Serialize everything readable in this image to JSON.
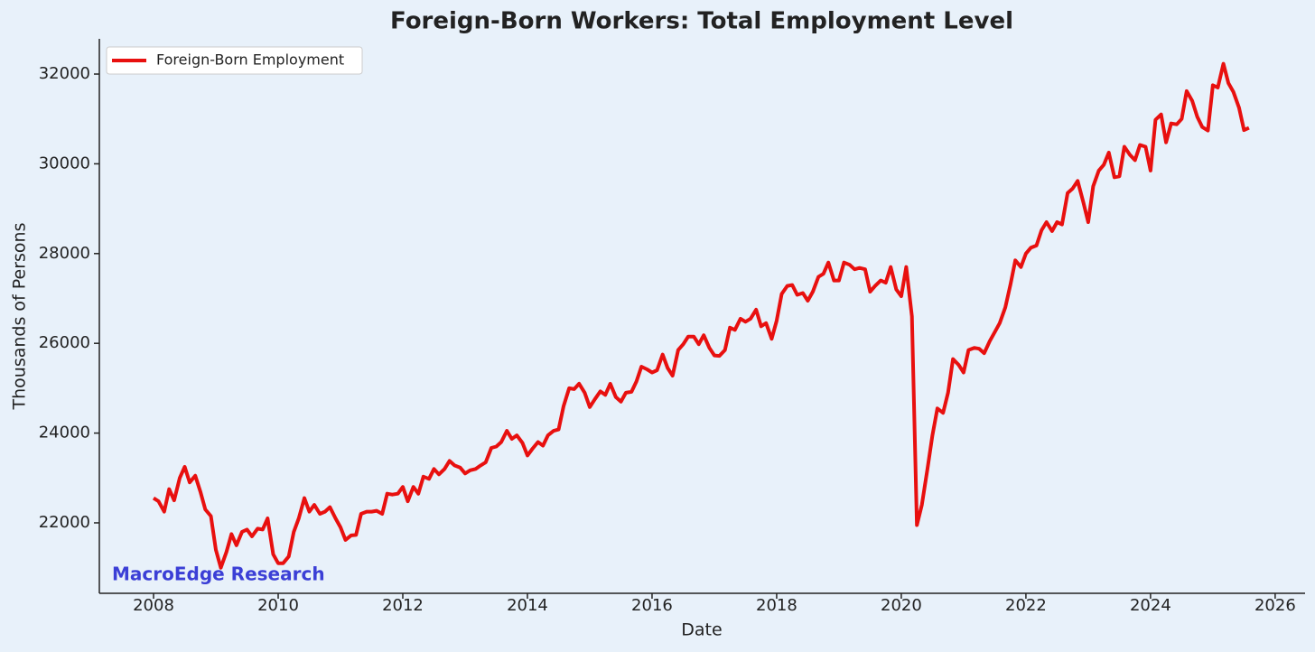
{
  "chart_data": {
    "type": "line",
    "title": "Foreign-Born Workers: Total Employment Level",
    "x_label": "Date",
    "y_label": "Thousands of Persons",
    "annotation": "MacroEdge Research",
    "legend": "upper left",
    "grid": false,
    "xlim": [
      2007.13,
      2026.48
    ],
    "xticks": [
      2008,
      2010,
      2012,
      2014,
      2016,
      2018,
      2020,
      2022,
      2024,
      2026
    ],
    "ylim": [
      20430,
      32785
    ],
    "yticks": [
      22000,
      24000,
      26000,
      28000,
      30000,
      32000
    ],
    "x": [
      2008,
      2008.08,
      2008.17,
      2008.25,
      2008.33,
      2008.42,
      2008.5,
      2008.58,
      2008.67,
      2008.75,
      2008.83,
      2008.92,
      2009,
      2009.08,
      2009.17,
      2009.25,
      2009.33,
      2009.42,
      2009.5,
      2009.58,
      2009.67,
      2009.75,
      2009.83,
      2009.92,
      2010,
      2010.08,
      2010.17,
      2010.25,
      2010.33,
      2010.42,
      2010.5,
      2010.58,
      2010.67,
      2010.75,
      2010.83,
      2010.92,
      2011,
      2011.08,
      2011.17,
      2011.25,
      2011.33,
      2011.42,
      2011.5,
      2011.58,
      2011.67,
      2011.75,
      2011.83,
      2011.92,
      2012,
      2012.08,
      2012.17,
      2012.25,
      2012.33,
      2012.42,
      2012.5,
      2012.58,
      2012.67,
      2012.75,
      2012.83,
      2012.92,
      2013,
      2013.08,
      2013.17,
      2013.25,
      2013.33,
      2013.42,
      2013.5,
      2013.58,
      2013.67,
      2013.75,
      2013.83,
      2013.92,
      2014,
      2014.08,
      2014.17,
      2014.25,
      2014.33,
      2014.42,
      2014.5,
      2014.58,
      2014.67,
      2014.75,
      2014.83,
      2014.92,
      2015,
      2015.08,
      2015.17,
      2015.25,
      2015.33,
      2015.42,
      2015.5,
      2015.58,
      2015.67,
      2015.75,
      2015.83,
      2015.92,
      2016,
      2016.08,
      2016.17,
      2016.25,
      2016.33,
      2016.42,
      2016.5,
      2016.58,
      2016.67,
      2016.75,
      2016.83,
      2016.92,
      2017,
      2017.08,
      2017.17,
      2017.25,
      2017.33,
      2017.42,
      2017.5,
      2017.58,
      2017.67,
      2017.75,
      2017.83,
      2017.92,
      2018,
      2018.08,
      2018.17,
      2018.25,
      2018.33,
      2018.42,
      2018.5,
      2018.58,
      2018.67,
      2018.75,
      2018.83,
      2018.92,
      2019,
      2019.08,
      2019.17,
      2019.25,
      2019.33,
      2019.42,
      2019.5,
      2019.58,
      2019.67,
      2019.75,
      2019.83,
      2019.92,
      2020,
      2020.08,
      2020.17,
      2020.25,
      2020.33,
      2020.42,
      2020.5,
      2020.58,
      2020.67,
      2020.75,
      2020.83,
      2020.92,
      2021,
      2021.08,
      2021.17,
      2021.25,
      2021.33,
      2021.42,
      2021.5,
      2021.58,
      2021.67,
      2021.75,
      2021.83,
      2021.92,
      2022,
      2022.08,
      2022.17,
      2022.25,
      2022.33,
      2022.42,
      2022.5,
      2022.58,
      2022.67,
      2022.75,
      2022.83,
      2022.92,
      2023,
      2023.08,
      2023.17,
      2023.25,
      2023.33,
      2023.42,
      2023.5,
      2023.58,
      2023.67,
      2023.75,
      2023.83,
      2023.92,
      2024,
      2024.08,
      2024.17,
      2024.25,
      2024.33,
      2024.42,
      2024.5,
      2024.58,
      2024.67,
      2024.75,
      2024.83,
      2024.92,
      2025,
      2025.08,
      2025.17,
      2025.25,
      2025.33,
      2025.42,
      2025.5,
      2025.58
    ],
    "series": [
      {
        "name": "Foreign-Born Employment",
        "color": "#e8100f",
        "values": [
          22550,
          22480,
          22250,
          22750,
          22500,
          23000,
          23250,
          22900,
          23050,
          22700,
          22300,
          22150,
          21400,
          21000,
          21350,
          21750,
          21500,
          21800,
          21850,
          21700,
          21870,
          21850,
          22100,
          21300,
          21100,
          21100,
          21250,
          21800,
          22100,
          22550,
          22250,
          22400,
          22200,
          22250,
          22350,
          22100,
          21900,
          21620,
          21720,
          21730,
          22200,
          22250,
          22250,
          22270,
          22200,
          22650,
          22630,
          22650,
          22800,
          22480,
          22800,
          22650,
          23030,
          22980,
          23200,
          23080,
          23200,
          23380,
          23280,
          23230,
          23100,
          23170,
          23200,
          23280,
          23350,
          23670,
          23700,
          23800,
          24050,
          23870,
          23950,
          23780,
          23500,
          23650,
          23800,
          23720,
          23950,
          24050,
          24080,
          24600,
          25000,
          24980,
          25100,
          24900,
          24580,
          24750,
          24930,
          24850,
          25100,
          24800,
          24700,
          24900,
          24920,
          25150,
          25480,
          25420,
          25350,
          25400,
          25750,
          25450,
          25280,
          25850,
          25980,
          26150,
          26150,
          25980,
          26180,
          25900,
          25730,
          25720,
          25850,
          26350,
          26300,
          26550,
          26480,
          26550,
          26750,
          26380,
          26450,
          26100,
          26500,
          27100,
          27280,
          27300,
          27080,
          27120,
          26950,
          27150,
          27480,
          27550,
          27800,
          27400,
          27400,
          27800,
          27750,
          27650,
          27680,
          27650,
          27150,
          27280,
          27400,
          27350,
          27700,
          27200,
          27050,
          27700,
          26600,
          21950,
          22400,
          23200,
          23950,
          24550,
          24450,
          24900,
          25650,
          25520,
          25350,
          25850,
          25900,
          25880,
          25780,
          26050,
          26250,
          26450,
          26800,
          27300,
          27850,
          27700,
          28000,
          28130,
          28180,
          28520,
          28700,
          28500,
          28700,
          28650,
          29350,
          29450,
          29620,
          29150,
          28700,
          29500,
          29850,
          29980,
          30250,
          29700,
          29720,
          30380,
          30200,
          30080,
          30420,
          30380,
          29850,
          30980,
          31100,
          30480,
          30900,
          30880,
          31000,
          31620,
          31400,
          31050,
          30820,
          30740,
          31750,
          31700,
          32230,
          31800,
          31600,
          31250,
          30750,
          30800
        ]
      }
    ]
  }
}
